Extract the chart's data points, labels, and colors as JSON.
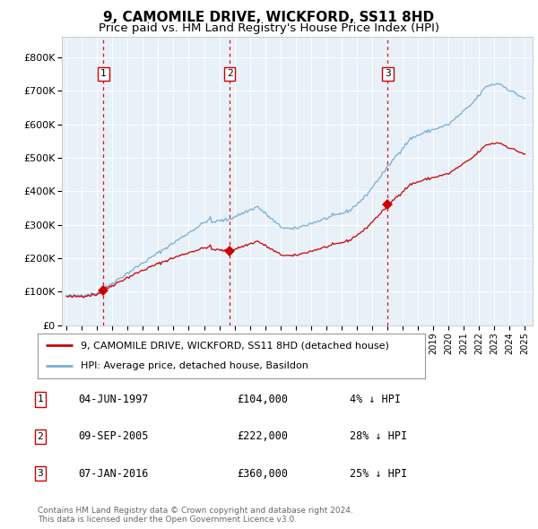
{
  "title": "9, CAMOMILE DRIVE, WICKFORD, SS11 8HD",
  "subtitle": "Price paid vs. HM Land Registry's House Price Index (HPI)",
  "title_fontsize": 11,
  "subtitle_fontsize": 9.5,
  "plot_bg_color": "#e8f0f8",
  "red_color": "#cc0000",
  "blue_color": "#7aadd4",
  "grid_color": "#ffffff",
  "sale_years": [
    1997.42,
    2005.69,
    2016.02
  ],
  "sale_prices": [
    104000,
    222000,
    360000
  ],
  "sale_labels": [
    "1",
    "2",
    "3"
  ],
  "legend_house": "9, CAMOMILE DRIVE, WICKFORD, SS11 8HD (detached house)",
  "legend_hpi": "HPI: Average price, detached house, Basildon",
  "table_rows": [
    [
      "1",
      "04-JUN-1997",
      "£104,000",
      "4% ↓ HPI"
    ],
    [
      "2",
      "09-SEP-2005",
      "£222,000",
      "28% ↓ HPI"
    ],
    [
      "3",
      "07-JAN-2016",
      "£360,000",
      "25% ↓ HPI"
    ]
  ],
  "footnote": "Contains HM Land Registry data © Crown copyright and database right 2024.\nThis data is licensed under the Open Government Licence v3.0.",
  "ylim": [
    0,
    850000
  ],
  "yticks": [
    0,
    100000,
    200000,
    300000,
    400000,
    500000,
    600000,
    700000,
    800000
  ],
  "ytick_labels": [
    "£0",
    "£100K",
    "£200K",
    "£300K",
    "£400K",
    "£500K",
    "£600K",
    "£700K",
    "£800K"
  ],
  "xlim_start": 1994.7,
  "xlim_end": 2025.5
}
